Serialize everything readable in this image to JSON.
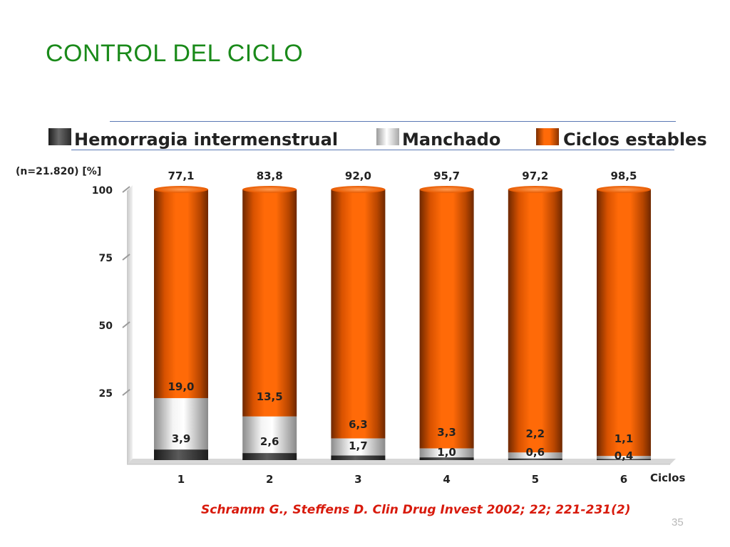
{
  "slide": {
    "title": "CONTROL DEL CICLO",
    "y_axis_note": "(n=21.820) [%]",
    "citation": "Schramm G., Steffens D. Clin Drug Invest 2002; 22; 221-231(2)",
    "page_number": "35"
  },
  "legend": {
    "items": [
      {
        "label": "Hemorragia intermenstrual",
        "color": "#3a3a3a"
      },
      {
        "label": "Manchado",
        "color": "#e0e0e0"
      },
      {
        "label": "Ciclos estables",
        "color": "#ff6a08"
      }
    ]
  },
  "chart_data": {
    "type": "bar",
    "stacked": true,
    "categories": [
      "1",
      "2",
      "3",
      "4",
      "5",
      "6"
    ],
    "xlabel": "Ciclos",
    "ylabel": "(n=21.820) [%]",
    "ylim": [
      0,
      100
    ],
    "yticks": [
      25,
      50,
      75,
      100
    ],
    "series": [
      {
        "name": "Hemorragia intermenstrual",
        "values": [
          3.9,
          2.6,
          1.7,
          1.0,
          0.6,
          0.4
        ],
        "labels": [
          "3,9",
          "2,6",
          "1,7",
          "1,0",
          "0,6",
          "0,4"
        ],
        "color": "#2e2e2e"
      },
      {
        "name": "Manchado",
        "values": [
          19.0,
          13.5,
          6.3,
          3.3,
          2.2,
          1.1
        ],
        "labels": [
          "19,0",
          "13,5",
          "6,3",
          "3,3",
          "2,2",
          "1,1"
        ],
        "color": "#dcdcdc"
      },
      {
        "name": "Ciclos estables",
        "values": [
          77.1,
          83.8,
          92.0,
          95.7,
          97.2,
          98.5
        ],
        "labels": [
          "77,1",
          "83,8",
          "92,0",
          "95,7",
          "97,2",
          "98,5"
        ],
        "color": "#ff6a08"
      }
    ]
  }
}
